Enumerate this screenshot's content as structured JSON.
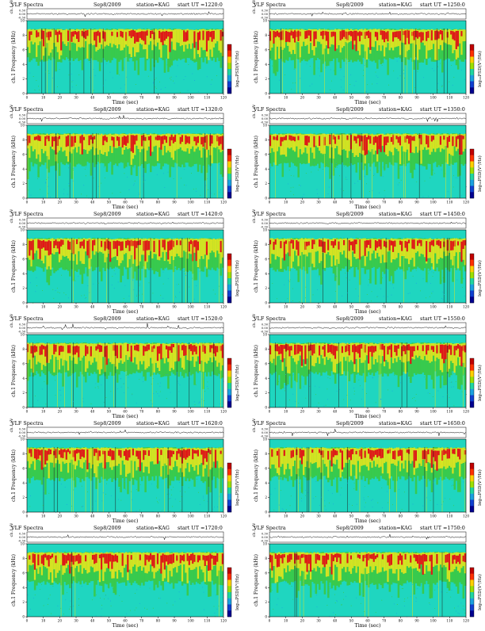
{
  "page": {
    "header_left": "VLF Spectra",
    "date": "Sep8/2009",
    "station": "station=KAG",
    "start_prefix": "start  UT  =",
    "ch_label": "ch.1 (V)",
    "freq_label": "ch.1 Frequency (kHz)",
    "psd_label": "log₁₀PSD(V²/Hz)",
    "time_label": "Time (sec)",
    "colors": {
      "noise_floor": "#1fd6c0",
      "green": "#3cc83c",
      "yellow": "#e6e61e",
      "red": "#e01818",
      "dark": "#202020",
      "colorbar": [
        "#c00000",
        "#ff3000",
        "#ffd000",
        "#9be000",
        "#1fd6a0",
        "#1aa0e0",
        "#1040d0",
        "#000090"
      ]
    }
  },
  "chart_data": [
    {
      "type": "heatmap",
      "date": "Sep8/2009",
      "station": "station=KAG",
      "start_ut": "1220:0",
      "title": "VLF Spectra",
      "xlabel": "Time (sec)",
      "ylabel": "Frequency (kHz)",
      "colorbar_label": "log10 PSD(V^2/Hz)",
      "xlim": [
        0,
        120
      ],
      "ylim": [
        0,
        10
      ],
      "x_ticks": [
        0,
        10,
        20,
        30,
        40,
        50,
        60,
        70,
        80,
        90,
        100,
        110,
        120
      ],
      "y_ticks": [
        0,
        2,
        4,
        6,
        8,
        10
      ],
      "wave_ylim": [
        -0.3,
        0.3
      ],
      "wave_ticks": [
        "0.30",
        "0.00",
        "-0.30"
      ]
    },
    {
      "type": "heatmap",
      "date": "Sep8/2009",
      "station": "station=KAG",
      "start_ut": "1250:0",
      "title": "VLF Spectra",
      "xlabel": "Time (sec)",
      "ylabel": "Frequency (kHz)",
      "colorbar_label": "log10 PSD(V^2/Hz)",
      "xlim": [
        0,
        120
      ],
      "ylim": [
        0,
        10
      ],
      "x_ticks": [
        0,
        10,
        20,
        30,
        40,
        50,
        60,
        70,
        80,
        90,
        100,
        110,
        120
      ],
      "y_ticks": [
        0,
        2,
        4,
        6,
        8,
        10
      ],
      "wave_ylim": [
        -0.3,
        0.3
      ],
      "wave_ticks": [
        "0.30",
        "0.00",
        "-0.30"
      ]
    },
    {
      "type": "heatmap",
      "date": "Sep8/2009",
      "station": "station=KAG",
      "start_ut": "1320:0",
      "title": "VLF Spectra",
      "xlabel": "Time (sec)",
      "ylabel": "Frequency (kHz)",
      "colorbar_label": "log10 PSD(V^2/Hz)",
      "xlim": [
        0,
        120
      ],
      "ylim": [
        0,
        10
      ],
      "x_ticks": [
        0,
        10,
        20,
        30,
        40,
        50,
        60,
        70,
        80,
        90,
        100,
        110,
        120
      ],
      "y_ticks": [
        0,
        2,
        4,
        6,
        8,
        10
      ],
      "wave_ylim": [
        -0.3,
        0.3
      ],
      "wave_ticks": [
        "0.30",
        "0.00",
        "-0.30"
      ]
    },
    {
      "type": "heatmap",
      "date": "Sep8/2009",
      "station": "station=KAG",
      "start_ut": "1350:0",
      "title": "VLF Spectra",
      "xlabel": "Time (sec)",
      "ylabel": "Frequency (kHz)",
      "colorbar_label": "log10 PSD(V^2/Hz)",
      "xlim": [
        0,
        120
      ],
      "ylim": [
        0,
        10
      ],
      "x_ticks": [
        0,
        10,
        20,
        30,
        40,
        50,
        60,
        70,
        80,
        90,
        100,
        110,
        120
      ],
      "y_ticks": [
        0,
        2,
        4,
        6,
        8,
        10
      ],
      "wave_ylim": [
        -0.3,
        0.3
      ],
      "wave_ticks": [
        "0.30",
        "0.00",
        "-0.30"
      ]
    },
    {
      "type": "heatmap",
      "date": "Sep8/2009",
      "station": "station=KAG",
      "start_ut": "1420:0",
      "title": "VLF Spectra",
      "xlabel": "Time (sec)",
      "ylabel": "Frequency (kHz)",
      "colorbar_label": "log10 PSD(V^2/Hz)",
      "xlim": [
        0,
        120
      ],
      "ylim": [
        0,
        10
      ],
      "x_ticks": [
        0,
        10,
        20,
        30,
        40,
        50,
        60,
        70,
        80,
        90,
        100,
        110,
        120
      ],
      "y_ticks": [
        0,
        2,
        4,
        6,
        8,
        10
      ],
      "wave_ylim": [
        -0.3,
        0.3
      ],
      "wave_ticks": [
        "0.30",
        "0.00",
        "-0.30"
      ]
    },
    {
      "type": "heatmap",
      "date": "Sep8/2009",
      "station": "station=KAG",
      "start_ut": "1450:0",
      "title": "VLF Spectra",
      "xlabel": "Time (sec)",
      "ylabel": "Frequency (kHz)",
      "colorbar_label": "log10 PSD(V^2/Hz)",
      "xlim": [
        0,
        120
      ],
      "ylim": [
        0,
        10
      ],
      "x_ticks": [
        0,
        10,
        20,
        30,
        40,
        50,
        60,
        70,
        80,
        90,
        100,
        110,
        120
      ],
      "y_ticks": [
        0,
        2,
        4,
        6,
        8,
        10
      ],
      "wave_ylim": [
        -0.3,
        0.3
      ],
      "wave_ticks": [
        "0.30",
        "0.00",
        "-0.30"
      ]
    },
    {
      "type": "heatmap",
      "date": "Sep8/2009",
      "station": "station=KAG",
      "start_ut": "1520:0",
      "title": "VLF Spectra",
      "xlabel": "Time (sec)",
      "ylabel": "Frequency (kHz)",
      "colorbar_label": "log10 PSD(V^2/Hz)",
      "xlim": [
        0,
        120
      ],
      "ylim": [
        0,
        10
      ],
      "x_ticks": [
        0,
        10,
        20,
        30,
        40,
        50,
        60,
        70,
        80,
        90,
        100,
        110,
        120
      ],
      "y_ticks": [
        0,
        2,
        4,
        6,
        8,
        10
      ],
      "wave_ylim": [
        -0.3,
        0.3
      ],
      "wave_ticks": [
        "0.30",
        "0.00",
        "-0.30"
      ]
    },
    {
      "type": "heatmap",
      "date": "Sep8/2009",
      "station": "station=KAG",
      "start_ut": "1550:0",
      "title": "VLF Spectra",
      "xlabel": "Time (sec)",
      "ylabel": "Frequency (kHz)",
      "colorbar_label": "log10 PSD(V^2/Hz)",
      "xlim": [
        0,
        120
      ],
      "ylim": [
        0,
        10
      ],
      "x_ticks": [
        0,
        10,
        20,
        30,
        40,
        50,
        60,
        70,
        80,
        90,
        100,
        110,
        120
      ],
      "y_ticks": [
        0,
        2,
        4,
        6,
        8,
        10
      ],
      "wave_ylim": [
        -0.3,
        0.3
      ],
      "wave_ticks": [
        "0.30",
        "0.00",
        "-0.30"
      ]
    },
    {
      "type": "heatmap",
      "date": "Sep8/2009",
      "station": "station=KAG",
      "start_ut": "1620:0",
      "title": "VLF Spectra",
      "xlabel": "Time (sec)",
      "ylabel": "Frequency (kHz)",
      "colorbar_label": "log10 PSD(V^2/Hz)",
      "xlim": [
        0,
        120
      ],
      "ylim": [
        0,
        10
      ],
      "x_ticks": [
        0,
        10,
        20,
        30,
        40,
        50,
        60,
        70,
        80,
        90,
        100,
        110,
        120
      ],
      "y_ticks": [
        0,
        2,
        4,
        6,
        8,
        10
      ],
      "wave_ylim": [
        -0.3,
        0.3
      ],
      "wave_ticks": [
        "0.30",
        "0.00",
        "-0.30"
      ]
    },
    {
      "type": "heatmap",
      "date": "Sep8/2009",
      "station": "station=KAG",
      "start_ut": "1650:0",
      "title": "VLF Spectra",
      "xlabel": "Time (sec)",
      "ylabel": "Frequency (kHz)",
      "colorbar_label": "log10 PSD(V^2/Hz)",
      "xlim": [
        0,
        120
      ],
      "ylim": [
        0,
        10
      ],
      "x_ticks": [
        0,
        10,
        20,
        30,
        40,
        50,
        60,
        70,
        80,
        90,
        100,
        110,
        120
      ],
      "y_ticks": [
        0,
        2,
        4,
        6,
        8,
        10
      ],
      "wave_ylim": [
        -0.3,
        0.3
      ],
      "wave_ticks": [
        "0.30",
        "0.00",
        "-0.30"
      ]
    },
    {
      "type": "heatmap",
      "date": "Sep8/2009",
      "station": "station=KAG",
      "start_ut": "1720:0",
      "title": "VLF Spectra",
      "xlabel": "Time (sec)",
      "ylabel": "Frequency (kHz)",
      "colorbar_label": "log10 PSD(V^2/Hz)",
      "xlim": [
        0,
        120
      ],
      "ylim": [
        0,
        10
      ],
      "x_ticks": [
        0,
        10,
        20,
        30,
        40,
        50,
        60,
        70,
        80,
        90,
        100,
        110,
        120
      ],
      "y_ticks": [
        0,
        2,
        4,
        6,
        8,
        10
      ],
      "wave_ylim": [
        -0.3,
        0.3
      ],
      "wave_ticks": [
        "0.30",
        "0.00",
        "-0.30"
      ]
    },
    {
      "type": "heatmap",
      "date": "Sep8/2009",
      "station": "station=KAG",
      "start_ut": "1750:0",
      "title": "VLF Spectra",
      "xlabel": "Time (sec)",
      "ylabel": "Frequency (kHz)",
      "colorbar_label": "log10 PSD(V^2/Hz)",
      "xlim": [
        0,
        120
      ],
      "ylim": [
        0,
        10
      ],
      "x_ticks": [
        0,
        10,
        20,
        30,
        40,
        50,
        60,
        70,
        80,
        90,
        100,
        110,
        120
      ],
      "y_ticks": [
        0,
        2,
        4,
        6,
        8,
        10
      ],
      "wave_ylim": [
        -0.3,
        0.3
      ],
      "wave_ticks": [
        "0.30",
        "0.00",
        "-0.30"
      ]
    }
  ]
}
